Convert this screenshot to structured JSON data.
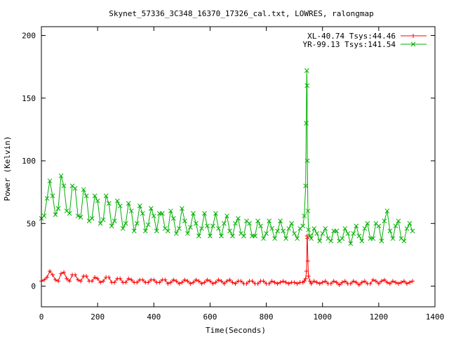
{
  "chart_data": {
    "type": "line",
    "title": "Skynet_57336_3C348_16370_17326_cal.txt, LOWRES, ralongmap",
    "xlabel": "Time(Seconds)",
    "ylabel": "Power (Kelvin)",
    "xlim": [
      0,
      1400
    ],
    "ylim": [
      -16.5,
      207
    ],
    "x_ticks": [
      0,
      200,
      400,
      600,
      800,
      1000,
      1200,
      1400
    ],
    "y_ticks": [
      0,
      50,
      100,
      150,
      200
    ],
    "grid": false,
    "legend_position": "top-right",
    "series": [
      {
        "name": "XL-40.74 Tsys:44.46",
        "color": "#ff0000",
        "marker": "plus",
        "points": [
          [
            0,
            4
          ],
          [
            10,
            5
          ],
          [
            20,
            7
          ],
          [
            30,
            12
          ],
          [
            40,
            9
          ],
          [
            50,
            5
          ],
          [
            60,
            4
          ],
          [
            70,
            10
          ],
          [
            80,
            11
          ],
          [
            90,
            6
          ],
          [
            100,
            4
          ],
          [
            110,
            9
          ],
          [
            120,
            9
          ],
          [
            130,
            5
          ],
          [
            140,
            4
          ],
          [
            150,
            8
          ],
          [
            160,
            8
          ],
          [
            170,
            4
          ],
          [
            180,
            4
          ],
          [
            190,
            7
          ],
          [
            200,
            6
          ],
          [
            210,
            3
          ],
          [
            220,
            4
          ],
          [
            230,
            7
          ],
          [
            240,
            7
          ],
          [
            250,
            3
          ],
          [
            260,
            3
          ],
          [
            270,
            6
          ],
          [
            280,
            6
          ],
          [
            290,
            3
          ],
          [
            300,
            3
          ],
          [
            310,
            6
          ],
          [
            320,
            5
          ],
          [
            330,
            3
          ],
          [
            340,
            3
          ],
          [
            350,
            5
          ],
          [
            360,
            5
          ],
          [
            370,
            3
          ],
          [
            380,
            3
          ],
          [
            390,
            5
          ],
          [
            400,
            5
          ],
          [
            410,
            3
          ],
          [
            420,
            3
          ],
          [
            430,
            5
          ],
          [
            440,
            5
          ],
          [
            450,
            2
          ],
          [
            460,
            3
          ],
          [
            470,
            5
          ],
          [
            480,
            4
          ],
          [
            490,
            2
          ],
          [
            500,
            3
          ],
          [
            510,
            5
          ],
          [
            520,
            4
          ],
          [
            530,
            2
          ],
          [
            540,
            3
          ],
          [
            550,
            5
          ],
          [
            560,
            4
          ],
          [
            570,
            2
          ],
          [
            580,
            3
          ],
          [
            590,
            5
          ],
          [
            600,
            4
          ],
          [
            610,
            2
          ],
          [
            620,
            3
          ],
          [
            630,
            5
          ],
          [
            640,
            4
          ],
          [
            650,
            2
          ],
          [
            660,
            4
          ],
          [
            670,
            5
          ],
          [
            680,
            3
          ],
          [
            690,
            2
          ],
          [
            700,
            4
          ],
          [
            710,
            4
          ],
          [
            720,
            2
          ],
          [
            730,
            2
          ],
          [
            740,
            4
          ],
          [
            750,
            4
          ],
          [
            760,
            2
          ],
          [
            770,
            2
          ],
          [
            780,
            4
          ],
          [
            790,
            4
          ],
          [
            800,
            2
          ],
          [
            810,
            2
          ],
          [
            820,
            4
          ],
          [
            830,
            3
          ],
          [
            840,
            2
          ],
          [
            850,
            3
          ],
          [
            860,
            4
          ],
          [
            870,
            3
          ],
          [
            880,
            2
          ],
          [
            890,
            3
          ],
          [
            900,
            3
          ],
          [
            910,
            2
          ],
          [
            920,
            3
          ],
          [
            930,
            3
          ],
          [
            935,
            4
          ],
          [
            940,
            6
          ],
          [
            943,
            12
          ],
          [
            945,
            40
          ],
          [
            946,
            38
          ],
          [
            948,
            20
          ],
          [
            950,
            8
          ],
          [
            955,
            4
          ],
          [
            960,
            2
          ],
          [
            970,
            4
          ],
          [
            980,
            3
          ],
          [
            990,
            2
          ],
          [
            1000,
            3
          ],
          [
            1010,
            4
          ],
          [
            1020,
            2
          ],
          [
            1030,
            2
          ],
          [
            1040,
            4
          ],
          [
            1050,
            3
          ],
          [
            1060,
            1
          ],
          [
            1070,
            3
          ],
          [
            1080,
            4
          ],
          [
            1090,
            2
          ],
          [
            1100,
            2
          ],
          [
            1110,
            4
          ],
          [
            1120,
            3
          ],
          [
            1130,
            1
          ],
          [
            1140,
            3
          ],
          [
            1150,
            4
          ],
          [
            1160,
            2
          ],
          [
            1170,
            2
          ],
          [
            1180,
            5
          ],
          [
            1190,
            4
          ],
          [
            1200,
            2
          ],
          [
            1210,
            4
          ],
          [
            1220,
            5
          ],
          [
            1230,
            3
          ],
          [
            1240,
            2
          ],
          [
            1250,
            4
          ],
          [
            1260,
            3
          ],
          [
            1270,
            2
          ],
          [
            1280,
            3
          ],
          [
            1290,
            4
          ],
          [
            1300,
            2
          ],
          [
            1310,
            3
          ],
          [
            1320,
            4
          ]
        ]
      },
      {
        "name": "YR-99.13 Tsys:141.54",
        "color": "#00b000",
        "marker": "cross",
        "points": [
          [
            0,
            54
          ],
          [
            10,
            56
          ],
          [
            20,
            70
          ],
          [
            30,
            84
          ],
          [
            40,
            72
          ],
          [
            50,
            57
          ],
          [
            60,
            62
          ],
          [
            70,
            88
          ],
          [
            80,
            80
          ],
          [
            90,
            60
          ],
          [
            100,
            58
          ],
          [
            110,
            80
          ],
          [
            120,
            78
          ],
          [
            130,
            56
          ],
          [
            140,
            55
          ],
          [
            150,
            77
          ],
          [
            160,
            72
          ],
          [
            170,
            52
          ],
          [
            180,
            54
          ],
          [
            190,
            72
          ],
          [
            200,
            68
          ],
          [
            210,
            50
          ],
          [
            220,
            53
          ],
          [
            230,
            72
          ],
          [
            240,
            66
          ],
          [
            250,
            48
          ],
          [
            260,
            52
          ],
          [
            270,
            68
          ],
          [
            280,
            64
          ],
          [
            290,
            46
          ],
          [
            300,
            50
          ],
          [
            310,
            66
          ],
          [
            320,
            60
          ],
          [
            330,
            44
          ],
          [
            340,
            50
          ],
          [
            350,
            64
          ],
          [
            360,
            58
          ],
          [
            370,
            44
          ],
          [
            380,
            49
          ],
          [
            390,
            62
          ],
          [
            400,
            56
          ],
          [
            410,
            44
          ],
          [
            420,
            58
          ],
          [
            430,
            58
          ],
          [
            440,
            46
          ],
          [
            450,
            44
          ],
          [
            460,
            60
          ],
          [
            470,
            54
          ],
          [
            480,
            42
          ],
          [
            490,
            46
          ],
          [
            500,
            62
          ],
          [
            510,
            52
          ],
          [
            520,
            42
          ],
          [
            530,
            47
          ],
          [
            540,
            58
          ],
          [
            550,
            50
          ],
          [
            560,
            40
          ],
          [
            570,
            46
          ],
          [
            580,
            58
          ],
          [
            590,
            48
          ],
          [
            600,
            40
          ],
          [
            610,
            48
          ],
          [
            620,
            58
          ],
          [
            630,
            46
          ],
          [
            640,
            40
          ],
          [
            650,
            50
          ],
          [
            660,
            56
          ],
          [
            670,
            44
          ],
          [
            680,
            40
          ],
          [
            690,
            50
          ],
          [
            700,
            54
          ],
          [
            710,
            42
          ],
          [
            720,
            40
          ],
          [
            730,
            52
          ],
          [
            740,
            50
          ],
          [
            750,
            40
          ],
          [
            760,
            40
          ],
          [
            770,
            52
          ],
          [
            780,
            48
          ],
          [
            790,
            38
          ],
          [
            800,
            42
          ],
          [
            810,
            52
          ],
          [
            820,
            46
          ],
          [
            830,
            38
          ],
          [
            840,
            44
          ],
          [
            850,
            52
          ],
          [
            860,
            44
          ],
          [
            870,
            38
          ],
          [
            880,
            46
          ],
          [
            890,
            50
          ],
          [
            900,
            42
          ],
          [
            910,
            38
          ],
          [
            920,
            46
          ],
          [
            930,
            48
          ],
          [
            935,
            56
          ],
          [
            940,
            80
          ],
          [
            942,
            130
          ],
          [
            944,
            172
          ],
          [
            945,
            160
          ],
          [
            946,
            100
          ],
          [
            948,
            60
          ],
          [
            950,
            45
          ],
          [
            955,
            40
          ],
          [
            960,
            38
          ],
          [
            970,
            46
          ],
          [
            980,
            42
          ],
          [
            990,
            36
          ],
          [
            1000,
            42
          ],
          [
            1010,
            46
          ],
          [
            1020,
            38
          ],
          [
            1030,
            36
          ],
          [
            1040,
            44
          ],
          [
            1050,
            44
          ],
          [
            1060,
            36
          ],
          [
            1070,
            38
          ],
          [
            1080,
            46
          ],
          [
            1090,
            42
          ],
          [
            1100,
            34
          ],
          [
            1110,
            42
          ],
          [
            1120,
            48
          ],
          [
            1130,
            40
          ],
          [
            1140,
            36
          ],
          [
            1150,
            46
          ],
          [
            1160,
            50
          ],
          [
            1170,
            38
          ],
          [
            1180,
            38
          ],
          [
            1190,
            50
          ],
          [
            1200,
            48
          ],
          [
            1210,
            36
          ],
          [
            1220,
            52
          ],
          [
            1230,
            60
          ],
          [
            1240,
            44
          ],
          [
            1250,
            38
          ],
          [
            1260,
            48
          ],
          [
            1270,
            52
          ],
          [
            1280,
            38
          ],
          [
            1290,
            36
          ],
          [
            1300,
            46
          ],
          [
            1310,
            50
          ],
          [
            1320,
            44
          ]
        ]
      }
    ]
  }
}
